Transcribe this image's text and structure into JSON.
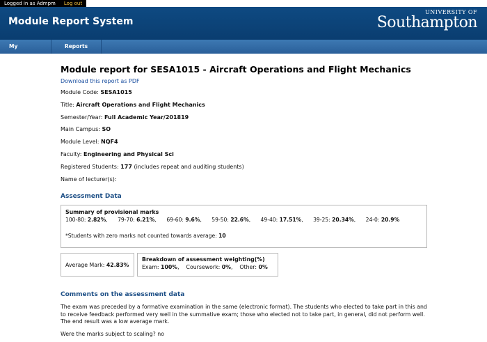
{
  "topbar": {
    "logged_in": "Logged in as Admpm",
    "logout": "Log out"
  },
  "header": {
    "app_title": "Module Report System",
    "logo_small": "UNIVERSITY OF",
    "logo_large": "Southampton"
  },
  "nav": {
    "items": [
      {
        "label": "My Modules"
      },
      {
        "label": "Reports"
      }
    ]
  },
  "report": {
    "title": "Module report for SESA1015 - Aircraft Operations and Flight Mechanics",
    "pdf_link": "Download this report as PDF",
    "fields": [
      {
        "label": "Module Code:",
        "value": "SESA1015",
        "extra": ""
      },
      {
        "label": "Title:",
        "value": "Aircraft Operations and Flight Mechanics",
        "extra": ""
      },
      {
        "label": "Semester/Year:",
        "value": "Full Academic Year/201819",
        "extra": ""
      },
      {
        "label": "Main Campus:",
        "value": "SO",
        "extra": ""
      },
      {
        "label": "Module Level:",
        "value": "NQF4",
        "extra": ""
      },
      {
        "label": "Faculty:",
        "value": "Engineering and Physical Sci",
        "extra": ""
      },
      {
        "label": "Registered Students:",
        "value": "177",
        "extra": "(includes repeat and auditing students)"
      },
      {
        "label": "Name of lecturer(s):",
        "value": "",
        "extra": ""
      }
    ]
  },
  "assessment": {
    "heading": "Assessment Data",
    "summary_heading": "Summary of provisional marks",
    "bands": [
      {
        "range": "100-80:",
        "pct": "2.82%"
      },
      {
        "range": "79-70:",
        "pct": "6.21%"
      },
      {
        "range": "69-60:",
        "pct": "9.6%"
      },
      {
        "range": "59-50:",
        "pct": "22.6%"
      },
      {
        "range": "49-40:",
        "pct": "17.51%"
      },
      {
        "range": "39-25:",
        "pct": "20.34%"
      },
      {
        "range": "24-0:",
        "pct": "20.9%"
      }
    ],
    "zero_note": "*Students with zero marks not counted towards average:",
    "zero_count": "10",
    "average_label": "Average Mark:",
    "average_value": "42.83%",
    "weighting_heading": "Breakdown of assessment weighting(%)",
    "exam_label": "Exam:",
    "exam_value": "100%",
    "coursework_label": "Coursework:",
    "coursework_value": "0%",
    "other_label": "Other:",
    "other_value": "0%"
  },
  "comments": {
    "heading": "Comments on the assessment data",
    "text": "The exam was preceded by a formative examination in the same (electronic format). The students who elected to take part in this and to receive feedback performed very well in the summative exam; those who elected not to take part, in general, did not perform well. The end result was a low average mark.",
    "scaling_q": "Were the marks subject to scaling?",
    "scaling_a": "no"
  }
}
